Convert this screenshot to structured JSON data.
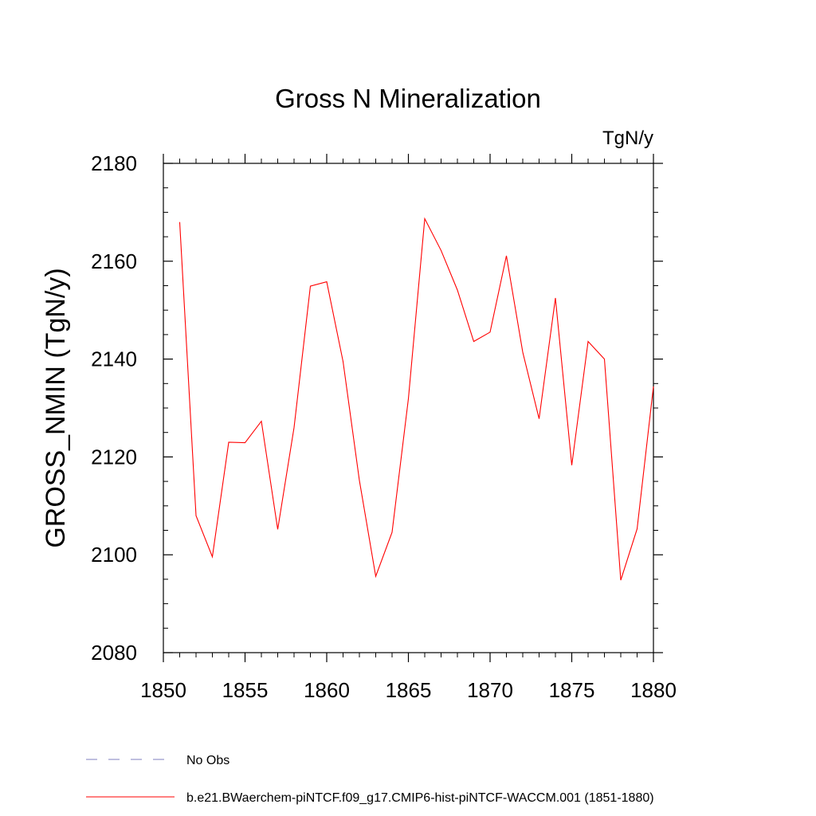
{
  "chart_data": {
    "type": "line",
    "title": "Gross N Mineralization",
    "units_label": "TgN/y",
    "ylabel": "GROSS_NMIN  (TgN/y)",
    "xlabel": "",
    "xlim": [
      1850,
      1880
    ],
    "ylim": [
      2080,
      2180
    ],
    "x_ticks": [
      1850,
      1855,
      1860,
      1865,
      1870,
      1875,
      1880
    ],
    "y_ticks": [
      2080,
      2100,
      2120,
      2140,
      2160,
      2180
    ],
    "x_minor_step": 1,
    "y_minor_step": 5,
    "grid": false,
    "legend_position": "bottom-left, below plot",
    "x": [
      1851,
      1852,
      1853,
      1854,
      1855,
      1856,
      1857,
      1858,
      1859,
      1860,
      1861,
      1862,
      1863,
      1864,
      1865,
      1866,
      1867,
      1868,
      1869,
      1870,
      1871,
      1872,
      1873,
      1874,
      1875,
      1876,
      1877,
      1878,
      1879,
      1880
    ],
    "series": [
      {
        "name": "b.e21.BWaerchem-piNTCF.f09_g17.CMIP6-hist-piNTCF-WACCM.001 (1851-1880)",
        "color": "#ff0000",
        "style": "solid",
        "values": [
          2168.0,
          2108.0,
          2099.6,
          2123.0,
          2122.9,
          2127.3,
          2105.2,
          2126.0,
          2154.9,
          2155.8,
          2139.5,
          2115.2,
          2095.6,
          2104.6,
          2131.9,
          2168.7,
          2162.2,
          2154.1,
          2143.6,
          2145.5,
          2161.1,
          2141.4,
          2127.8,
          2152.5,
          2118.3,
          2143.6,
          2140.0,
          2094.8,
          2105.3,
          2134.4
        ]
      }
    ],
    "legend": [
      {
        "label": "No Obs",
        "color": "#7f7fbf",
        "style": "dashed"
      },
      {
        "label": "b.e21.BWaerchem-piNTCF.f09_g17.CMIP6-hist-piNTCF-WACCM.001 (1851-1880)",
        "color": "#ff0000",
        "style": "solid"
      }
    ]
  }
}
